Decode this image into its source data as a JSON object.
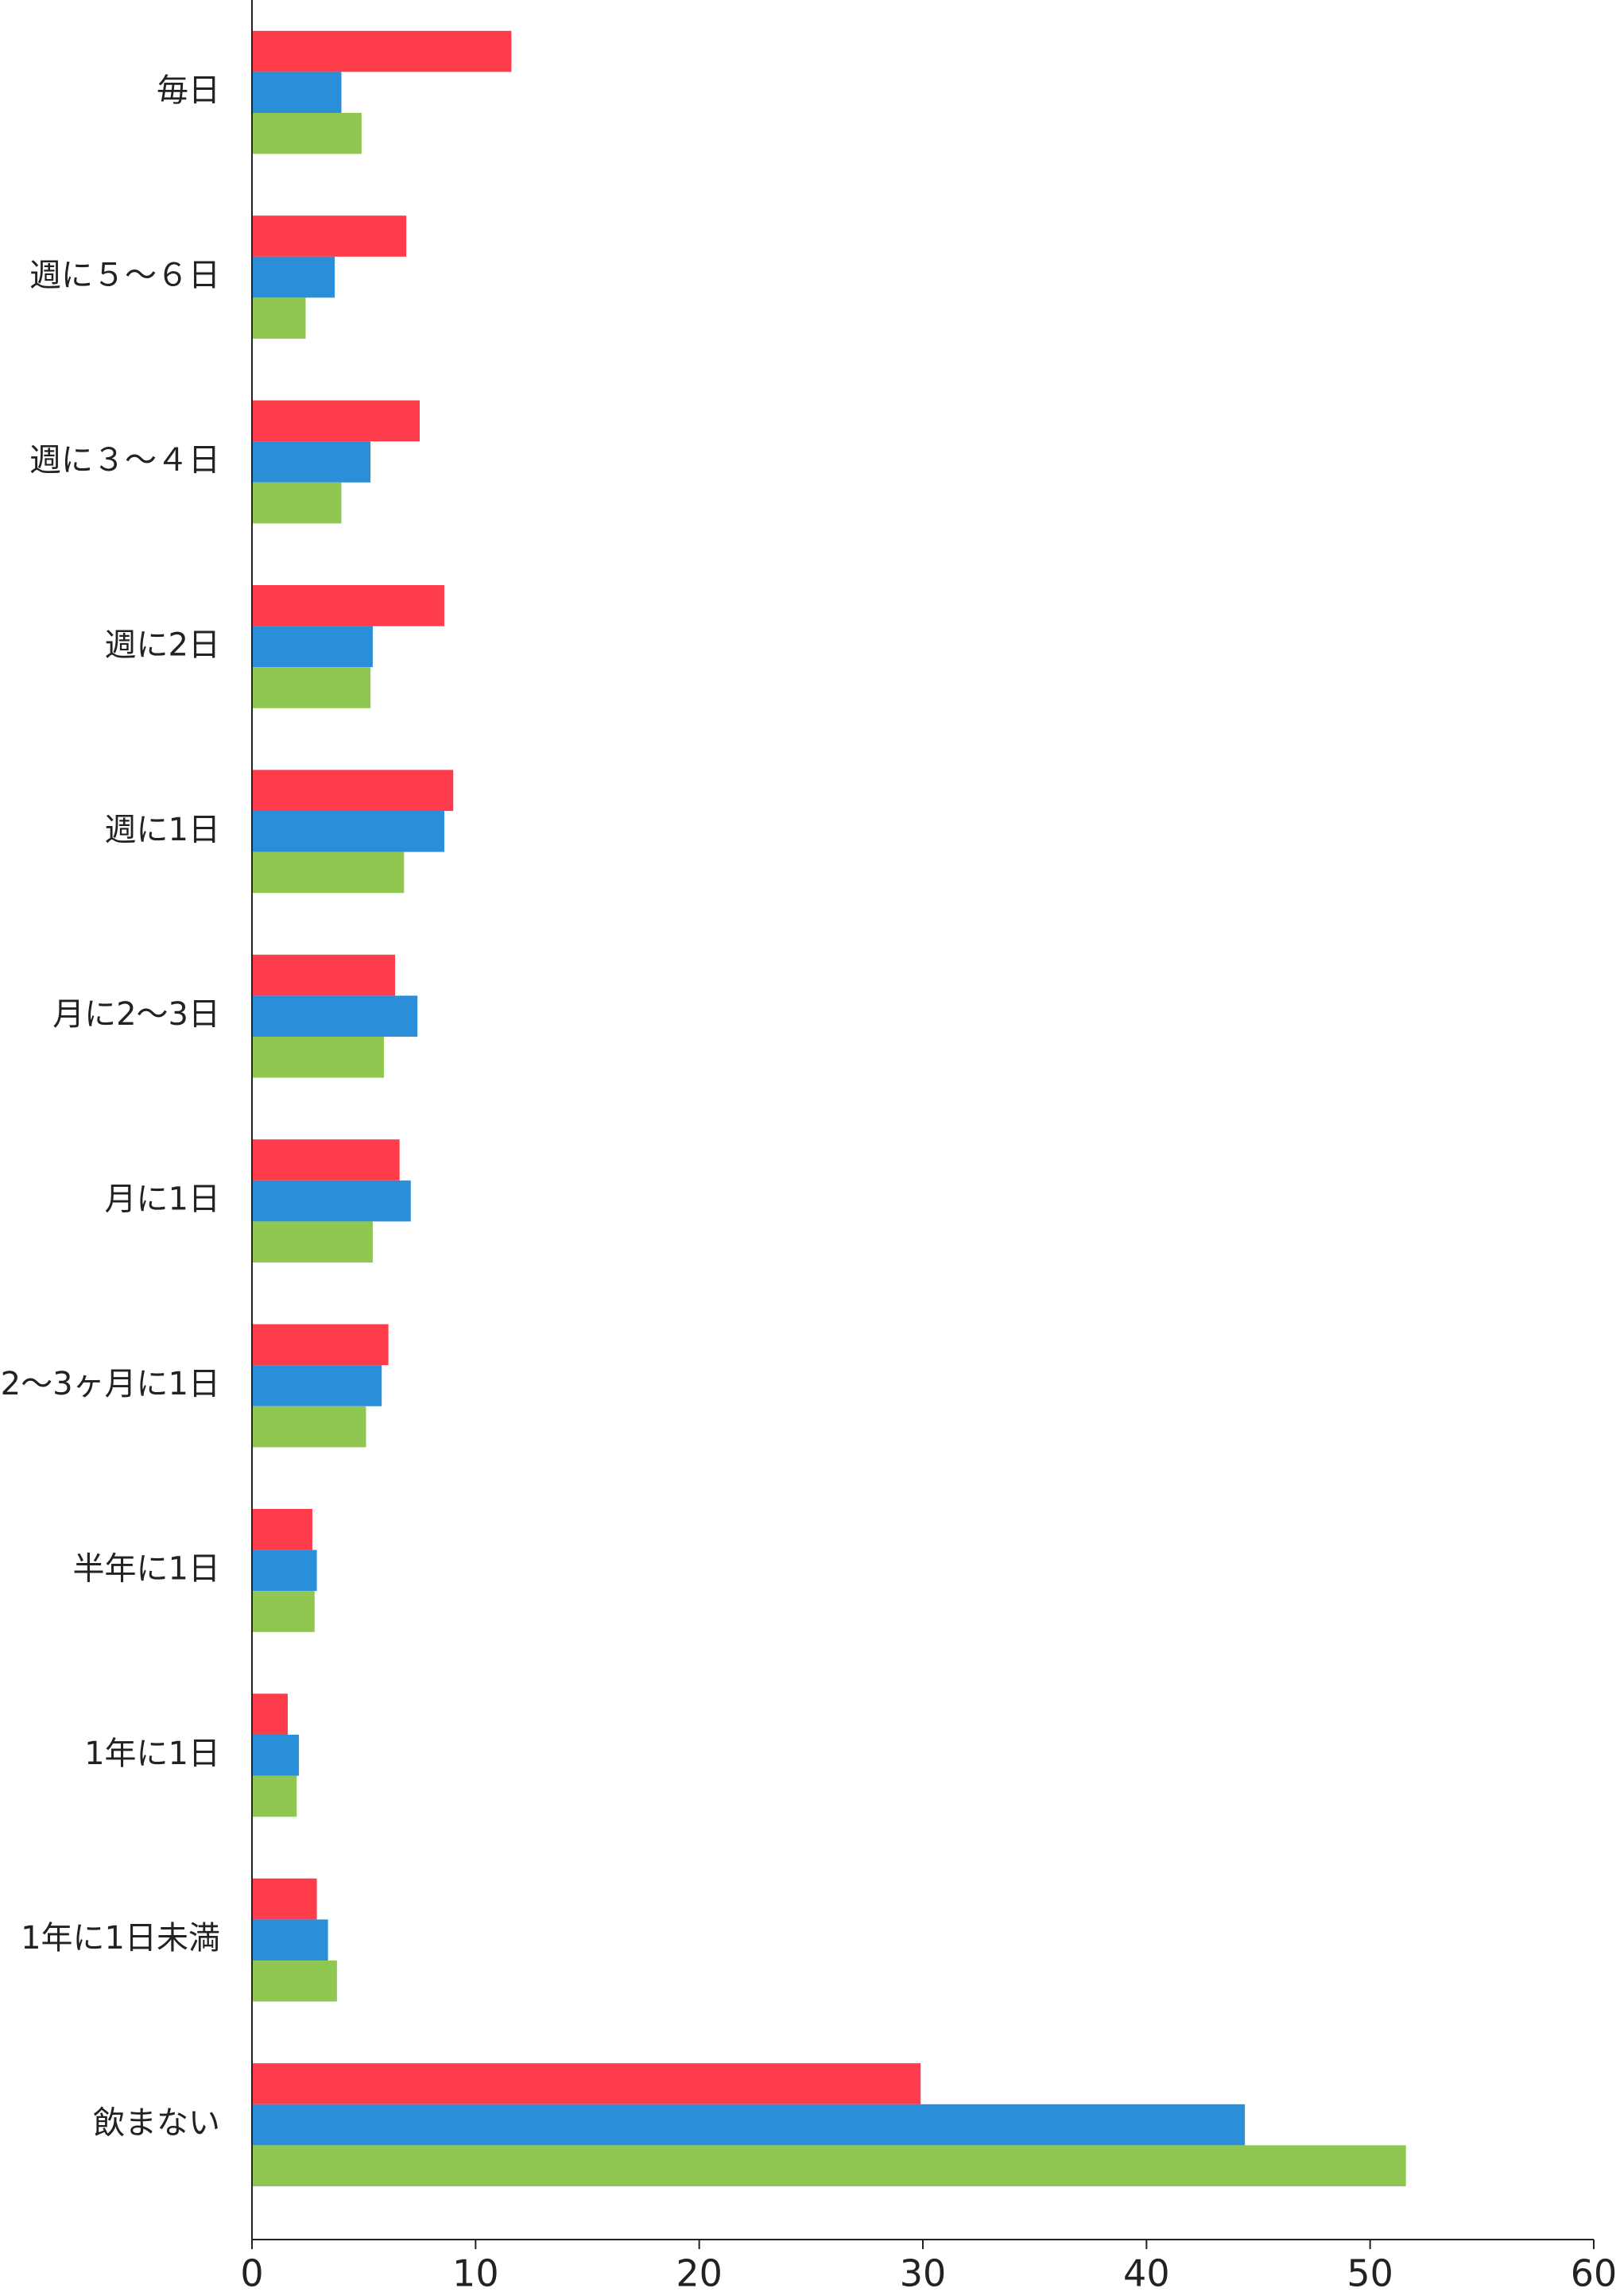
{
  "chart_data": {
    "type": "bar",
    "orientation": "horizontal",
    "categories": [
      "毎日",
      "週に５～６日",
      "週に３～４日",
      "週に2日",
      "週に1日",
      "月に2〜3日",
      "月に1日",
      "2〜3ヶ月に1日",
      "半年に1日",
      "1年に1日",
      "1年に1日未満",
      "飲まない"
    ],
    "series": [
      {
        "color": "#ff3c4b",
        "values": [
          11.6,
          6.9,
          7.5,
          8.6,
          9.0,
          6.4,
          6.6,
          6.1,
          2.7,
          1.6,
          2.9,
          29.9
        ]
      },
      {
        "color": "#2a8fd8",
        "values": [
          4.0,
          3.7,
          5.3,
          5.4,
          8.6,
          7.4,
          7.1,
          5.8,
          2.9,
          2.1,
          3.4,
          44.4
        ]
      },
      {
        "color": "#8fc751",
        "values": [
          4.9,
          2.4,
          4.0,
          5.3,
          6.8,
          5.9,
          5.4,
          5.1,
          2.8,
          2.0,
          3.8,
          51.6
        ]
      }
    ],
    "xlim": [
      0,
      60
    ],
    "xticks": [
      0,
      10,
      20,
      30,
      40,
      50,
      60
    ]
  }
}
